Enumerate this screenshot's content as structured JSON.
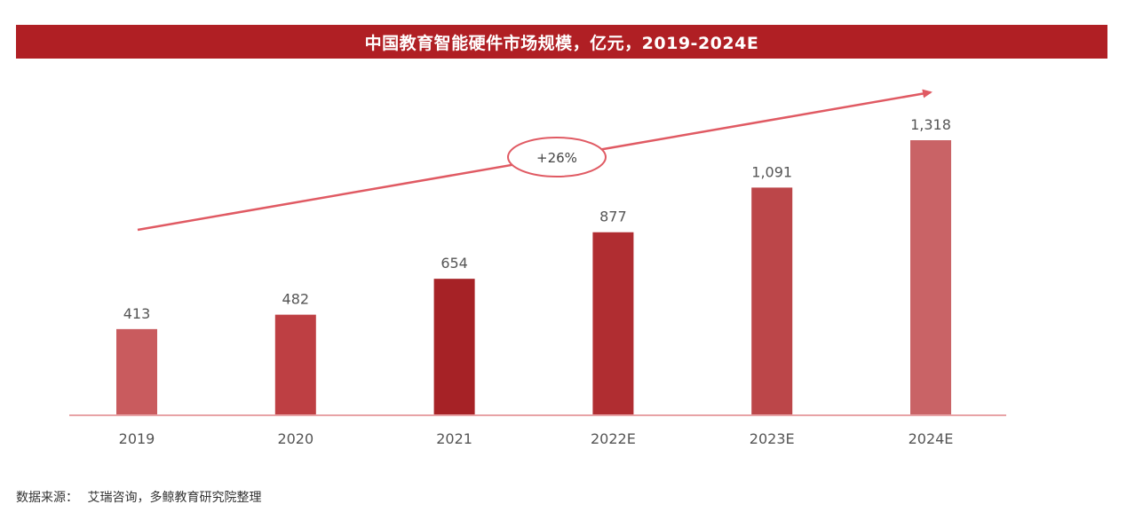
{
  "title": "中国教育智能硬件市场规模，亿元，2019-2024E",
  "source": {
    "label": "数据来源：",
    "text": "艾瑞咨询，多鲸教育研究院整理"
  },
  "colors": {
    "title_bg": "#b01f24",
    "axis": "#e8a3a6",
    "trend": "#e05a63",
    "label": "#555555"
  },
  "chart_data": {
    "type": "bar",
    "title": "中国教育智能硬件市场规模，亿元，2019-2024E",
    "categories": [
      "2019",
      "2020",
      "2021",
      "2022E",
      "2023E",
      "2024E"
    ],
    "values": [
      413,
      482,
      654,
      877,
      1091,
      1318
    ],
    "value_labels": [
      "413",
      "482",
      "654",
      "877",
      "1,091",
      "1,318"
    ],
    "bar_colors": [
      "#c95b5e",
      "#be3f43",
      "#a62226",
      "#b02d31",
      "#bc4649",
      "#c96366"
    ],
    "ylim": [
      0,
      1400
    ],
    "grid": false,
    "legend": "none",
    "annotation": {
      "text": "+26%",
      "type": "trend-arrow"
    },
    "xlabel": "",
    "ylabel": ""
  }
}
